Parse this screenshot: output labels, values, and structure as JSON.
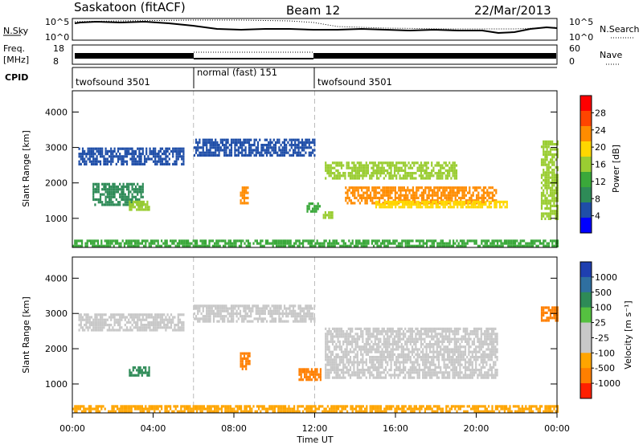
{
  "header": {
    "title": "Saskatoon (fitACF)",
    "beam": "Beam 12",
    "date": "22/Mar/2013"
  },
  "top_panels": {
    "nsky_label": "N.Sky",
    "nsky_ticks": [
      "10^5",
      "10^0"
    ],
    "nsearch_label": "N.Search",
    "nsearch_ticks": [
      "10^5",
      "10^0"
    ],
    "freq_label": "Freq.",
    "freq_unit": "[MHz]",
    "freq_ticks": [
      "18",
      "8"
    ],
    "nave_label": "Nave",
    "nave_ticks": [
      "60",
      "0"
    ],
    "cpid_label": "CPID"
  },
  "cpid_segments": [
    {
      "label": "twofsound 3501",
      "start": 0,
      "end": 6
    },
    {
      "label": "normal (fast) 151",
      "start": 6,
      "end": 12
    },
    {
      "label": "twofsound 3501",
      "start": 12,
      "end": 24
    }
  ],
  "colors": {
    "power": [
      "#0000ff",
      "#1f4ea8",
      "#2e8b57",
      "#3aa83a",
      "#9acd32",
      "#ffd700",
      "#ff8c00",
      "#ff4500",
      "#ff0000"
    ],
    "velocity": [
      "#1f3fb0",
      "#2f6fa0",
      "#2e8b57",
      "#55c040",
      "#c8c8c8",
      "#c8c8c8",
      "#ffa500",
      "#ff7f00",
      "#ff2000"
    ],
    "ground": "#c8c8c8"
  },
  "chart_data": [
    {
      "type": "heatmap",
      "title": "Power",
      "xlabel": "Time UT",
      "ylabel": "Slant Range [km]",
      "xlim": [
        0,
        24
      ],
      "ylim": [
        180,
        4600
      ],
      "yticks": [
        1000,
        2000,
        3000,
        4000
      ],
      "xticks": [
        "00:00",
        "04:00",
        "08:00",
        "12:00",
        "16:00",
        "20:00",
        "00:00"
      ],
      "colorbar": {
        "label": "Power [dB]",
        "ticks": [
          "28",
          "24",
          "20",
          "16",
          "12",
          "8",
          "4"
        ],
        "range": [
          0,
          30
        ]
      },
      "regions": [
        {
          "t0": 0.3,
          "t1": 5.5,
          "r0": 2500,
          "r1": 3000,
          "power": 6
        },
        {
          "t0": 1.0,
          "t1": 3.5,
          "r0": 1400,
          "r1": 2000,
          "power": 8
        },
        {
          "t0": 2.8,
          "t1": 3.8,
          "r0": 1250,
          "r1": 1500,
          "power": 14
        },
        {
          "t0": 6.0,
          "t1": 12.0,
          "r0": 2800,
          "r1": 3250,
          "power": 6
        },
        {
          "t0": 8.3,
          "t1": 8.7,
          "r0": 1400,
          "r1": 1900,
          "power": 22
        },
        {
          "t0": 11.6,
          "t1": 12.3,
          "r0": 1200,
          "r1": 1450,
          "power": 12
        },
        {
          "t0": 12.4,
          "t1": 12.9,
          "r0": 1000,
          "r1": 1200,
          "power": 16
        },
        {
          "t0": 12.5,
          "t1": 19.0,
          "r0": 2100,
          "r1": 2600,
          "power": 14
        },
        {
          "t0": 13.5,
          "t1": 21.0,
          "r0": 1400,
          "r1": 1900,
          "power": 22
        },
        {
          "t0": 15.0,
          "t1": 21.5,
          "r0": 1300,
          "r1": 1500,
          "power": 18
        },
        {
          "t0": 23.2,
          "t1": 24.0,
          "r0": 1000,
          "r1": 3200,
          "power": 16
        },
        {
          "t0": 0.0,
          "t1": 24.0,
          "r0": 200,
          "r1": 400,
          "power": 10
        }
      ]
    },
    {
      "type": "heatmap",
      "title": "Velocity",
      "xlabel": "Time UT",
      "ylabel": "Slant Range [km]",
      "xlim": [
        0,
        24
      ],
      "ylim": [
        180,
        4600
      ],
      "yticks": [
        1000,
        2000,
        3000,
        4000
      ],
      "xticks": [
        "00:00",
        "04:00",
        "08:00",
        "12:00",
        "16:00",
        "20:00",
        "00:00"
      ],
      "colorbar": {
        "label": "Velocity [m s⁻¹]",
        "ticks": [
          "1000",
          "500",
          "100",
          "25",
          "-25",
          "-100",
          "-500",
          "-1000"
        ],
        "range": [
          -1000,
          1000
        ]
      },
      "regions": [
        {
          "t0": 0.3,
          "t1": 5.5,
          "r0": 2500,
          "r1": 3000,
          "velocity": 0
        },
        {
          "t0": 2.8,
          "t1": 3.8,
          "r0": 1250,
          "r1": 1500,
          "velocity": 300
        },
        {
          "t0": 6.0,
          "t1": 12.0,
          "r0": 2800,
          "r1": 3250,
          "velocity": 0
        },
        {
          "t0": 8.3,
          "t1": 8.8,
          "r0": 1400,
          "r1": 1900,
          "velocity": -300
        },
        {
          "t0": 11.2,
          "t1": 12.3,
          "r0": 1100,
          "r1": 1450,
          "velocity": -200
        },
        {
          "t0": 12.5,
          "t1": 21.0,
          "r0": 1200,
          "r1": 2600,
          "velocity": 0
        },
        {
          "t0": 23.2,
          "t1": 24.0,
          "r0": 2800,
          "r1": 3200,
          "velocity": -300
        },
        {
          "t0": 0.0,
          "t1": 24.0,
          "r0": 200,
          "r1": 400,
          "velocity": -50
        }
      ]
    }
  ]
}
